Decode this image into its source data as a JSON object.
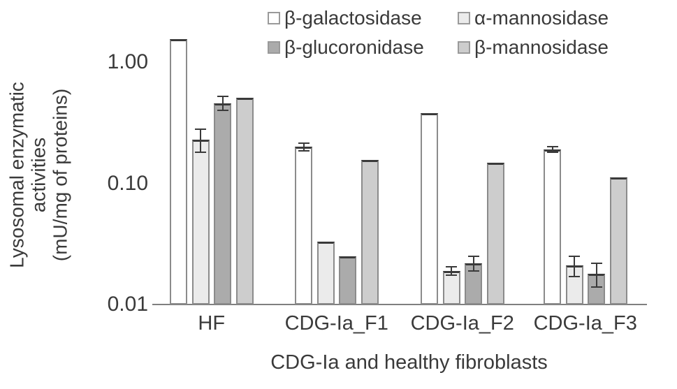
{
  "chart_data": {
    "type": "bar",
    "scale": "log",
    "xlabel": "CDG-Ia and healthy fibroblasts",
    "ylabel": "Lysosomal enzymatic activities (mU/mg of proteins)",
    "ylabel_lines": [
      "Lysosomal enzymatic",
      "activities",
      "(mU/mg of proteins)"
    ],
    "categories": [
      "HF",
      "CDG-Ia_F1",
      "CDG-Ia_F2",
      "CDG-Ia_F3"
    ],
    "series": [
      {
        "name": "β-galactosidase",
        "color": "#ffffff",
        "values": [
          1.55,
          0.2,
          0.38,
          0.19
        ],
        "errors": [
          0,
          0.015,
          0,
          0.01
        ]
      },
      {
        "name": "α-mannosidase",
        "color": "#ebebeb",
        "values": [
          0.23,
          0.033,
          0.019,
          0.021
        ],
        "errors": [
          0.05,
          0,
          0.0015,
          0.004
        ]
      },
      {
        "name": "β-glucoronidase",
        "color": "#ababab",
        "values": [
          0.46,
          0.025,
          0.022,
          0.018
        ],
        "errors": [
          0.06,
          0,
          0.003,
          0.004
        ]
      },
      {
        "name": "β-mannosidase",
        "color": "#cdcdcd",
        "values": [
          0.51,
          0.155,
          0.148,
          0.112
        ],
        "errors": [
          0,
          0,
          0,
          0
        ]
      }
    ],
    "y_ticks": [
      {
        "v": 1.0,
        "label": "1.00"
      },
      {
        "v": 0.1,
        "label": "0.10"
      },
      {
        "v": 0.01,
        "label": "0.01"
      }
    ],
    "ylim": [
      0.01,
      2.0
    ],
    "grid": false,
    "legend_position": "top-right",
    "colors": {
      "bar_border": "#8b8b8b",
      "bar_top_edge": "#3a3a3a",
      "axis": "#7f7f7f",
      "text": "#3a3a3a"
    }
  }
}
